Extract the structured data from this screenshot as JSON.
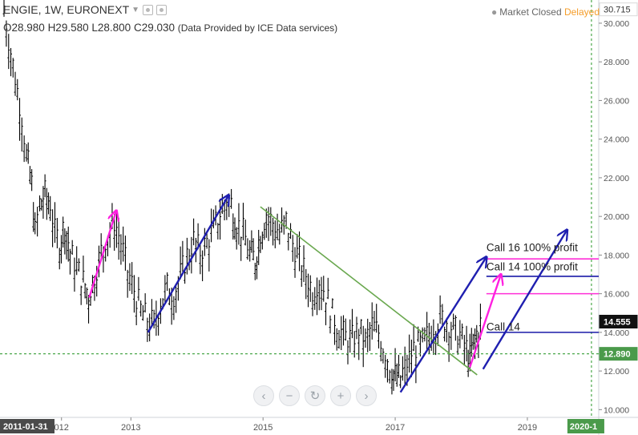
{
  "header": {
    "symbol": "ENGIE",
    "interval": "1W",
    "exchange": "EURONEXT",
    "title": "ENGIE, 1W, EURONEXT",
    "dropdown_icon": "chevron-down-icon",
    "settings_icon": "gear-icon",
    "close_icon": "close-icon"
  },
  "ohlc": {
    "open": "O28.980",
    "high": "H29.580",
    "low": "L28.800",
    "close": "C29.030",
    "provider": "(Data Provided by ICE Data services)"
  },
  "status": {
    "market": "Market Closed",
    "feed": "Delayed"
  },
  "nav": {
    "buttons": [
      {
        "name": "scroll-left-button",
        "glyph": "‹"
      },
      {
        "name": "zoom-out-button",
        "glyph": "−"
      },
      {
        "name": "reset-button",
        "glyph": "↻"
      },
      {
        "name": "zoom-in-button",
        "glyph": "+"
      },
      {
        "name": "scroll-right-button",
        "glyph": "›"
      }
    ]
  },
  "colors": {
    "candles": "#000000",
    "trendline": "#6aa84f",
    "arrow_blue": "#1f1fb0",
    "arrow_magenta": "#ff1fe0",
    "hline_blue": "#1a1aa8",
    "hline_magenta": "#ff2fd8",
    "dashed_green": "#4aa84a",
    "price_badge_dark": "#111111",
    "price_badge_green": "#4a9a4a"
  },
  "chart_data": {
    "type": "line",
    "title": "ENGIE, 1W, EURONEXT",
    "xlabel": "",
    "ylabel": "",
    "x_ticks": [
      "2011-01-31",
      "012",
      "2013",
      "2015",
      "2017",
      "2019",
      "2020-1"
    ],
    "y_ticks": [
      10,
      12,
      14,
      16,
      18,
      20,
      22,
      24,
      26,
      28,
      30
    ],
    "y_tick_labels": [
      "10.000",
      "12.000",
      "14.000",
      "16.000",
      "18.000",
      "20.000",
      "22.000",
      "24.000",
      "26.000",
      "28.000",
      "30.000"
    ],
    "ylim": [
      9.6,
      31.2
    ],
    "xlim": [
      2011.08,
      2020.08
    ],
    "grid": false,
    "series": [
      {
        "type": "weekly-range",
        "points": [
          [
            2011.08,
            30.7
          ],
          [
            2011.15,
            29.0
          ],
          [
            2011.25,
            27.0
          ],
          [
            2011.35,
            25.0
          ],
          [
            2011.42,
            23.0
          ],
          [
            2011.5,
            21.5
          ],
          [
            2011.55,
            19.0
          ],
          [
            2011.62,
            20.5
          ],
          [
            2011.7,
            21.0
          ],
          [
            2011.78,
            20.5
          ],
          [
            2011.85,
            19.0
          ],
          [
            2011.92,
            18.5
          ],
          [
            2012.0,
            19.5
          ],
          [
            2012.08,
            18.0
          ],
          [
            2012.18,
            17.2
          ],
          [
            2012.28,
            16.5
          ],
          [
            2012.36,
            15.8
          ],
          [
            2012.45,
            16.8
          ],
          [
            2012.55,
            18.0
          ],
          [
            2012.65,
            19.0
          ],
          [
            2012.75,
            19.6
          ],
          [
            2012.85,
            18.5
          ],
          [
            2012.95,
            17.0
          ],
          [
            2013.05,
            16.0
          ],
          [
            2013.15,
            15.0
          ],
          [
            2013.25,
            14.5
          ],
          [
            2013.35,
            14.3
          ],
          [
            2013.45,
            15.5
          ],
          [
            2013.55,
            16.2
          ],
          [
            2013.65,
            15.8
          ],
          [
            2013.75,
            16.8
          ],
          [
            2013.85,
            17.8
          ],
          [
            2013.95,
            18.6
          ],
          [
            2014.05,
            18.0
          ],
          [
            2014.15,
            18.5
          ],
          [
            2014.25,
            19.2
          ],
          [
            2014.35,
            20.0
          ],
          [
            2014.45,
            20.8
          ],
          [
            2014.52,
            20.5
          ],
          [
            2014.6,
            19.5
          ],
          [
            2014.7,
            19.0
          ],
          [
            2014.8,
            18.0
          ],
          [
            2014.88,
            17.6
          ],
          [
            2014.96,
            19.0
          ],
          [
            2015.05,
            20.0
          ],
          [
            2015.15,
            19.5
          ],
          [
            2015.25,
            19.0
          ],
          [
            2015.35,
            19.6
          ],
          [
            2015.45,
            18.4
          ],
          [
            2015.55,
            17.6
          ],
          [
            2015.65,
            16.8
          ],
          [
            2015.75,
            16.0
          ],
          [
            2015.85,
            16.6
          ],
          [
            2015.95,
            15.8
          ],
          [
            2016.05,
            14.8
          ],
          [
            2016.15,
            14.0
          ],
          [
            2016.25,
            13.6
          ],
          [
            2016.35,
            13.5
          ],
          [
            2016.45,
            14.0
          ],
          [
            2016.55,
            13.4
          ],
          [
            2016.65,
            14.2
          ],
          [
            2016.75,
            13.8
          ],
          [
            2016.85,
            12.8
          ],
          [
            2016.95,
            11.9
          ],
          [
            2017.0,
            11.6
          ],
          [
            2017.08,
            11.5
          ],
          [
            2017.18,
            12.2
          ],
          [
            2017.28,
            13.0
          ],
          [
            2017.38,
            13.2
          ],
          [
            2017.48,
            13.6
          ],
          [
            2017.58,
            14.2
          ],
          [
            2017.68,
            14.6
          ],
          [
            2017.78,
            14.4
          ],
          [
            2017.88,
            14.0
          ],
          [
            2017.98,
            13.7
          ],
          [
            2018.08,
            13.0
          ],
          [
            2018.13,
            12.5
          ],
          [
            2018.18,
            13.3
          ],
          [
            2018.26,
            14.0
          ],
          [
            2018.32,
            14.5
          ]
        ]
      }
    ],
    "drawings": {
      "trendline": {
        "from": [
          2014.96,
          20.5
        ],
        "to": [
          2018.24,
          11.8
        ]
      },
      "blue_arrows": [
        {
          "from": [
            2013.26,
            14.0
          ],
          "to": [
            2014.48,
            21.1
          ]
        },
        {
          "from": [
            2017.08,
            10.9
          ],
          "to": [
            2018.38,
            17.9
          ]
        },
        {
          "from": [
            2018.33,
            12.1
          ],
          "to": [
            2019.6,
            19.3
          ]
        }
      ],
      "magenta_arrows": [
        {
          "from": [
            2012.37,
            15.8
          ],
          "to": [
            2012.78,
            20.3
          ]
        },
        {
          "from": [
            2018.13,
            12.2
          ],
          "to": [
            2018.6,
            17.0
          ]
        }
      ],
      "hlines": [
        {
          "y": 17.8,
          "from": 2018.38,
          "color": "magenta"
        },
        {
          "y": 16.9,
          "from": 2018.38,
          "color": "blue"
        },
        {
          "y": 16.0,
          "from": 2018.38,
          "color": "magenta"
        },
        {
          "y": 14.0,
          "from": 2018.38,
          "color": "blue"
        }
      ],
      "dashed_level": 12.89,
      "dashed_vertical_x": 2019.97
    },
    "annotations": [
      {
        "text": "Call 16 100% profit",
        "at": [
          2018.38,
          18.2
        ]
      },
      {
        "text": "Call 14 100% profit",
        "at": [
          2018.38,
          17.2
        ]
      },
      {
        "text": "Call 14",
        "at": [
          2018.38,
          14.1
        ]
      }
    ],
    "price_badges": [
      {
        "label": "30.715",
        "y": 30.715,
        "style": "light"
      },
      {
        "label": "14.555",
        "y": 14.555,
        "style": "dark"
      },
      {
        "label": "12.890",
        "y": 12.89,
        "style": "green"
      }
    ],
    "time_badges": [
      {
        "label": "2011-01-31",
        "style": "dark"
      },
      {
        "label": "2020-1",
        "style": "green"
      }
    ]
  }
}
